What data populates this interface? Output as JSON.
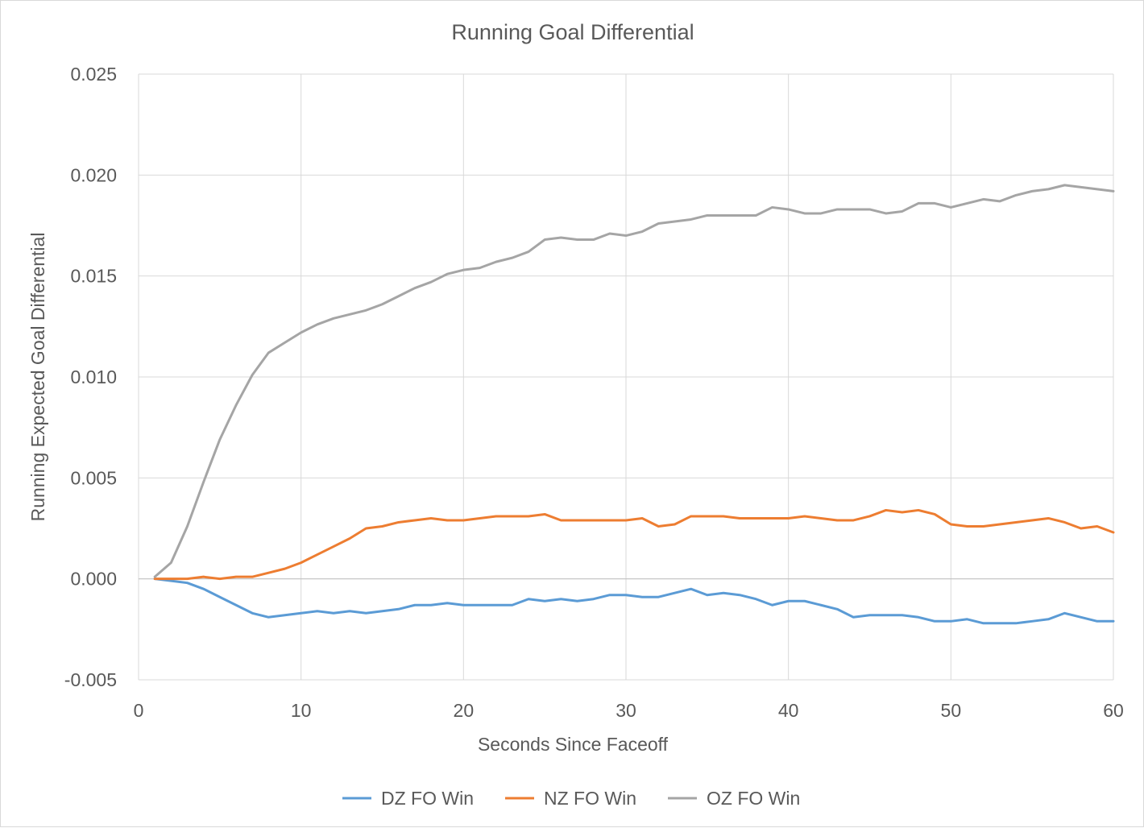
{
  "chart_data": {
    "type": "line",
    "title": "Running Goal Differential",
    "xlabel": "Seconds Since Faceoff",
    "ylabel": "Running Expected Goal Differential",
    "xlim": [
      0,
      60
    ],
    "ylim": [
      -0.005,
      0.025
    ],
    "x_ticks": [
      "0",
      "10",
      "20",
      "30",
      "40",
      "50",
      "60"
    ],
    "x_tick_values": [
      0,
      10,
      20,
      30,
      40,
      50,
      60
    ],
    "y_ticks": [
      "-0.005",
      "0.000",
      "0.005",
      "0.010",
      "0.015",
      "0.020",
      "0.025"
    ],
    "y_tick_values": [
      -0.005,
      0,
      0.005,
      0.01,
      0.015,
      0.02,
      0.025
    ],
    "grid": true,
    "legend_position": "bottom",
    "x": [
      1,
      2,
      3,
      4,
      5,
      6,
      7,
      8,
      9,
      10,
      11,
      12,
      13,
      14,
      15,
      16,
      17,
      18,
      19,
      20,
      21,
      22,
      23,
      24,
      25,
      26,
      27,
      28,
      29,
      30,
      31,
      32,
      33,
      34,
      35,
      36,
      37,
      38,
      39,
      40,
      41,
      42,
      43,
      44,
      45,
      46,
      47,
      48,
      49,
      50,
      51,
      52,
      53,
      54,
      55,
      56,
      57,
      58,
      59,
      60
    ],
    "series": [
      {
        "name": "DZ FO Win",
        "color": "#5b9bd5",
        "values": [
          0.0,
          -0.0001,
          -0.0002,
          -0.0005,
          -0.0009,
          -0.0013,
          -0.0017,
          -0.0019,
          -0.0018,
          -0.0017,
          -0.0016,
          -0.0017,
          -0.0016,
          -0.0017,
          -0.0016,
          -0.0015,
          -0.0013,
          -0.0013,
          -0.0012,
          -0.0013,
          -0.0013,
          -0.0013,
          -0.0013,
          -0.001,
          -0.0011,
          -0.001,
          -0.0011,
          -0.001,
          -0.0008,
          -0.0008,
          -0.0009,
          -0.0009,
          -0.0007,
          -0.0005,
          -0.0008,
          -0.0007,
          -0.0008,
          -0.001,
          -0.0013,
          -0.0011,
          -0.0011,
          -0.0013,
          -0.0015,
          -0.0019,
          -0.0018,
          -0.0018,
          -0.0018,
          -0.0019,
          -0.0021,
          -0.0021,
          -0.002,
          -0.0022,
          -0.0022,
          -0.0022,
          -0.0021,
          -0.002,
          -0.0017,
          -0.0019,
          -0.0021,
          -0.0021
        ]
      },
      {
        "name": "NZ FO Win",
        "color": "#ed7d31",
        "values": [
          0.0,
          0.0,
          0.0,
          0.0001,
          0.0,
          0.0001,
          0.0001,
          0.0003,
          0.0005,
          0.0008,
          0.0012,
          0.0016,
          0.002,
          0.0025,
          0.0026,
          0.0028,
          0.0029,
          0.003,
          0.0029,
          0.0029,
          0.003,
          0.0031,
          0.0031,
          0.0031,
          0.0032,
          0.0029,
          0.0029,
          0.0029,
          0.0029,
          0.0029,
          0.003,
          0.0026,
          0.0027,
          0.0031,
          0.0031,
          0.0031,
          0.003,
          0.003,
          0.003,
          0.003,
          0.0031,
          0.003,
          0.0029,
          0.0029,
          0.0031,
          0.0034,
          0.0033,
          0.0034,
          0.0032,
          0.0027,
          0.0026,
          0.0026,
          0.0027,
          0.0028,
          0.0029,
          0.003,
          0.0028,
          0.0025,
          0.0026,
          0.0023
        ]
      },
      {
        "name": "OZ FO Win",
        "color": "#a5a5a5",
        "values": [
          0.0001,
          0.0008,
          0.0026,
          0.0048,
          0.0069,
          0.0086,
          0.0101,
          0.0112,
          0.0117,
          0.0122,
          0.0126,
          0.0129,
          0.0131,
          0.0133,
          0.0136,
          0.014,
          0.0144,
          0.0147,
          0.0151,
          0.0153,
          0.0154,
          0.0157,
          0.0159,
          0.0162,
          0.0168,
          0.0169,
          0.0168,
          0.0168,
          0.0171,
          0.017,
          0.0172,
          0.0176,
          0.0177,
          0.0178,
          0.018,
          0.018,
          0.018,
          0.018,
          0.0184,
          0.0183,
          0.0181,
          0.0181,
          0.0183,
          0.0183,
          0.0183,
          0.0181,
          0.0182,
          0.0186,
          0.0186,
          0.0184,
          0.0186,
          0.0188,
          0.0187,
          0.019,
          0.0192,
          0.0193,
          0.0195,
          0.0194,
          0.0193,
          0.0192
        ]
      }
    ]
  }
}
